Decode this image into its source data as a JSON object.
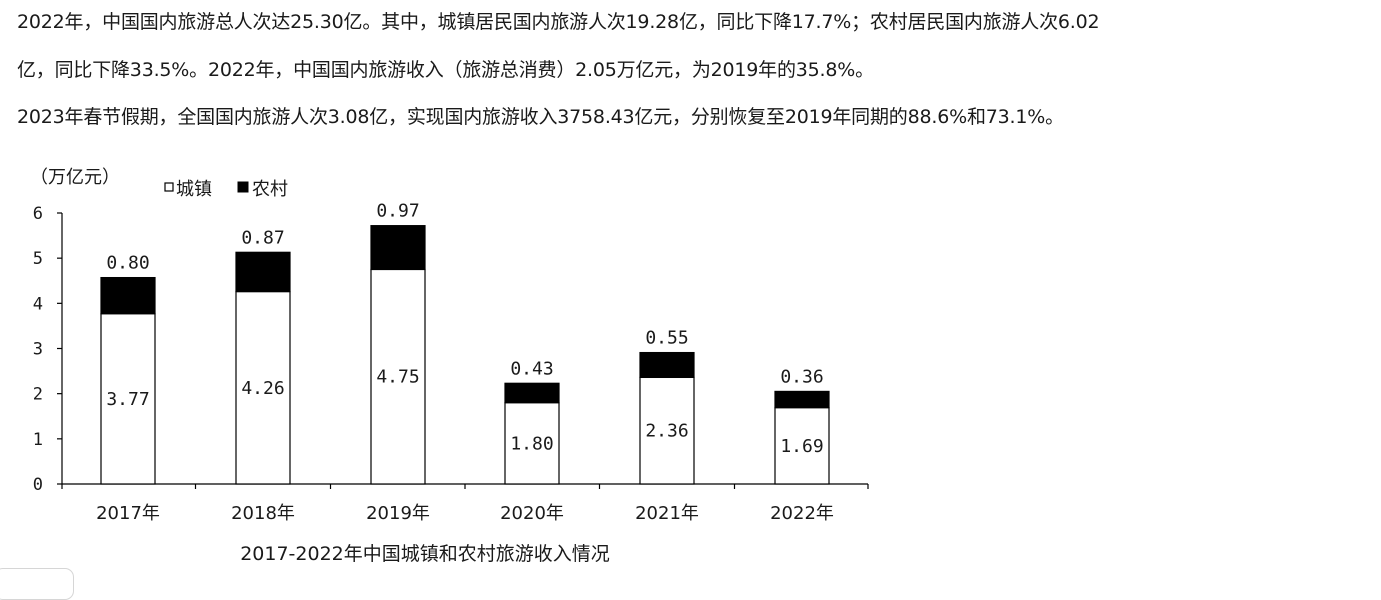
{
  "text": {
    "line1": "2022年，中国国内旅游总人次达25.30亿。其中，城镇居民国内旅游人次19.28亿，同比下降17.7%；农村居民国内旅游人次6.02",
    "line2": "亿，同比下降33.5%。2022年，中国国内旅游收入（旅游总消费）2.05万亿元，为2019年的35.8%。",
    "line3": "2023年春节假期，全国国内旅游人次3.08亿，实现国内旅游收入3758.43亿元，分别恢复至2019年同期的88.6%和73.1%。"
  },
  "chart_data": {
    "type": "bar",
    "stacked": true,
    "title": "2017-2022年中国城镇和农村旅游收入情况",
    "unit_label": "（万亿元）",
    "categories": [
      "2017年",
      "2018年",
      "2019年",
      "2020年",
      "2021年",
      "2022年"
    ],
    "series": [
      {
        "name": "城镇",
        "values": [
          3.77,
          4.26,
          4.75,
          1.8,
          2.36,
          1.69
        ],
        "labels": [
          "3.77",
          "4.26",
          "4.75",
          "1.80",
          "2.36",
          "1.69"
        ],
        "color": "#ffffff"
      },
      {
        "name": "农村",
        "values": [
          0.8,
          0.87,
          0.97,
          0.43,
          0.55,
          0.36
        ],
        "labels": [
          "0.80",
          "0.87",
          "0.97",
          "0.43",
          "0.55",
          "0.36"
        ],
        "color": "#000000"
      }
    ],
    "ylim": [
      0,
      6
    ],
    "yticks": [
      0,
      1,
      2,
      3,
      4,
      5,
      6
    ],
    "ytick_labels": [
      "0",
      "1",
      "2",
      "3",
      "4",
      "5",
      "6"
    ],
    "legend": {
      "placement": "top-left",
      "items": [
        {
          "marker": "□",
          "name": "城镇"
        },
        {
          "marker": "■",
          "name": "农村"
        }
      ]
    },
    "grid": false
  },
  "colors": {
    "text": "#1a1a1a",
    "axis": "#000000",
    "bar_urban": "#ffffff",
    "bar_rural": "#000000"
  }
}
